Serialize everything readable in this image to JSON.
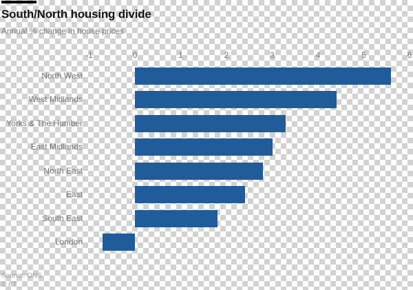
{
  "header": {
    "title": "South/North housing divide",
    "subtitle": "Annual % change in house prices"
  },
  "footer": {
    "source": "Source: ONS",
    "credit": "© FT"
  },
  "colors": {
    "bar": "#1f5c99",
    "title_text": "#141414",
    "muted_text": "#757575",
    "source_text": "#a0a0a0",
    "checker_gray": "#d2d2d2"
  },
  "chart_data": {
    "type": "bar",
    "orientation": "horizontal",
    "title": "South/North housing divide",
    "subtitle": "Annual % change in house prices",
    "source": "Source: ONS",
    "categories": [
      "North West",
      "West Midlands",
      "Yorks & The Humber",
      "East Midlands",
      "North East",
      "East",
      "South East",
      "London"
    ],
    "values": [
      5.6,
      4.4,
      3.3,
      3.0,
      2.8,
      2.4,
      1.8,
      -0.7
    ],
    "x_ticks": [
      "-1",
      "0",
      "1",
      "2",
      "3",
      "4",
      "5",
      "6"
    ],
    "x_tick_values": [
      -1,
      0,
      1,
      2,
      3,
      4,
      5,
      6
    ],
    "xlim": [
      -1,
      6
    ],
    "xlabel": "",
    "ylabel": "",
    "grid": false,
    "legend": false,
    "bar_color": "#1f5c99"
  }
}
